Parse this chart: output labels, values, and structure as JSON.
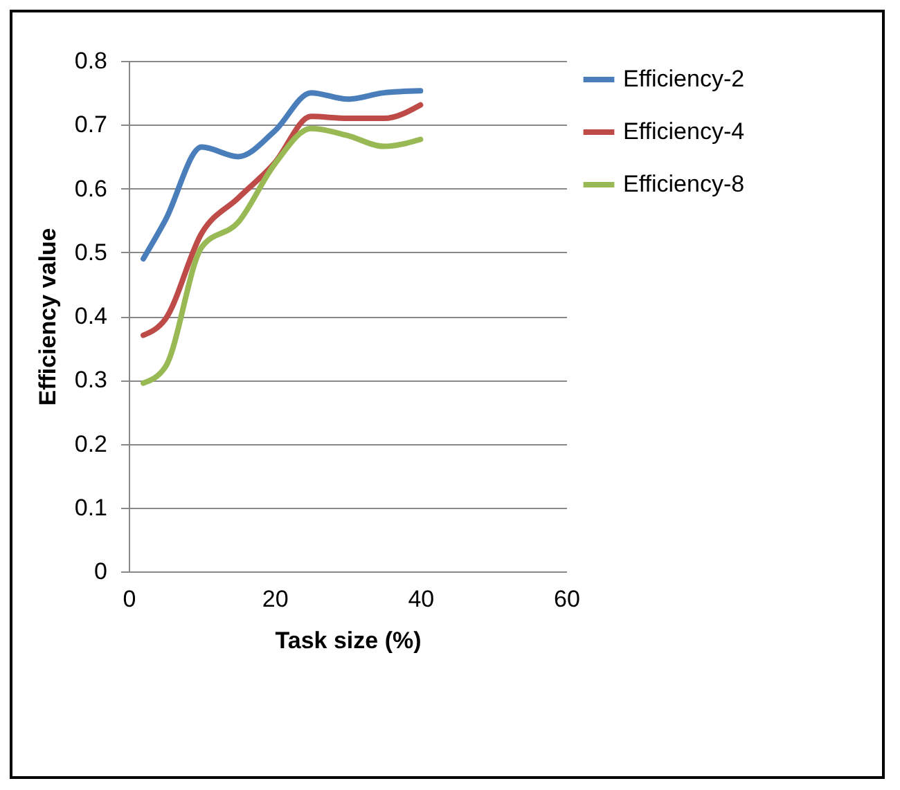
{
  "chart_data": {
    "type": "line",
    "xlabel": "Task size (%)",
    "ylabel": "Efficiency value",
    "x": [
      2,
      5,
      10,
      15,
      20,
      25,
      30,
      35,
      40
    ],
    "series": [
      {
        "name": "Efficiency-2",
        "color": "#4a7ebb",
        "values": [
          0.49,
          0.55,
          0.665,
          0.65,
          0.69,
          0.75,
          0.74,
          0.75,
          0.753
        ]
      },
      {
        "name": "Efficiency-4",
        "color": "#be4b48",
        "values": [
          0.37,
          0.395,
          0.53,
          0.585,
          0.64,
          0.713,
          0.71,
          0.71,
          0.731
        ]
      },
      {
        "name": "Efficiency-8",
        "color": "#98b954",
        "values": [
          0.295,
          0.32,
          0.508,
          0.547,
          0.638,
          0.694,
          0.683,
          0.666,
          0.677
        ]
      }
    ],
    "xlim": [
      0,
      60
    ],
    "xticks": [
      0,
      20,
      40,
      60
    ],
    "ylim": [
      0,
      0.8
    ],
    "yticks": [
      0,
      0.1,
      0.2,
      0.3,
      0.4,
      0.5,
      0.6,
      0.7,
      0.8
    ],
    "grid": "y",
    "legend": "right",
    "marker": "none",
    "line_style": "solid"
  }
}
